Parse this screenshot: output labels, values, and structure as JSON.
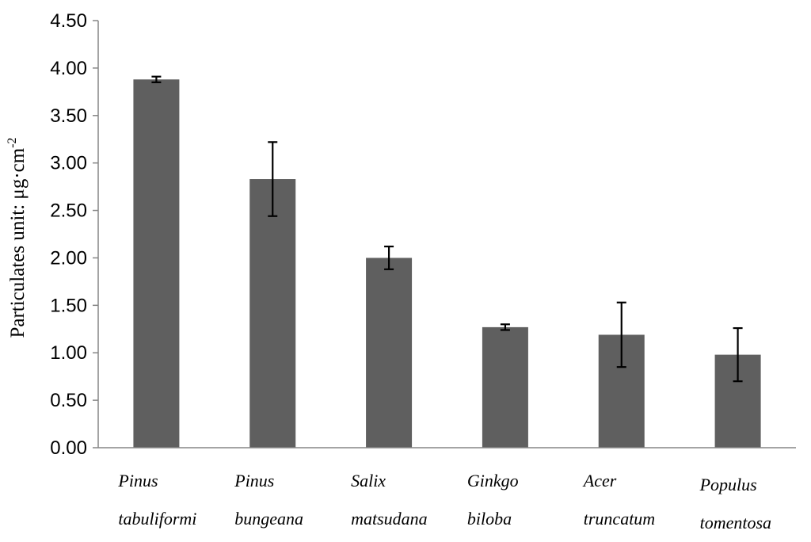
{
  "chart_data": {
    "type": "bar",
    "title": "",
    "xlabel": "",
    "ylabel": "Particulates unit:  μg·cm",
    "ylabel_superscript": "-2",
    "ylim": [
      0,
      4.5
    ],
    "yticks": [
      "0.00",
      "0.50",
      "1.00",
      "1.50",
      "2.00",
      "2.50",
      "3.00",
      "3.50",
      "4.00",
      "4.50"
    ],
    "categories": [
      [
        "Pinus",
        "tabuliformi"
      ],
      [
        "Pinus",
        "bungeana"
      ],
      [
        "Salix",
        "matsudana"
      ],
      [
        "Ginkgo",
        "biloba"
      ],
      [
        "Acer",
        "truncatum"
      ],
      [
        "Populus",
        "tomentosa"
      ]
    ],
    "values": [
      3.88,
      2.83,
      2.0,
      1.27,
      1.19,
      0.98
    ],
    "error": [
      0.03,
      0.39,
      0.12,
      0.03,
      0.34,
      0.28
    ],
    "bar_color": "#5f5f5f",
    "grid": false,
    "legend": "none"
  }
}
